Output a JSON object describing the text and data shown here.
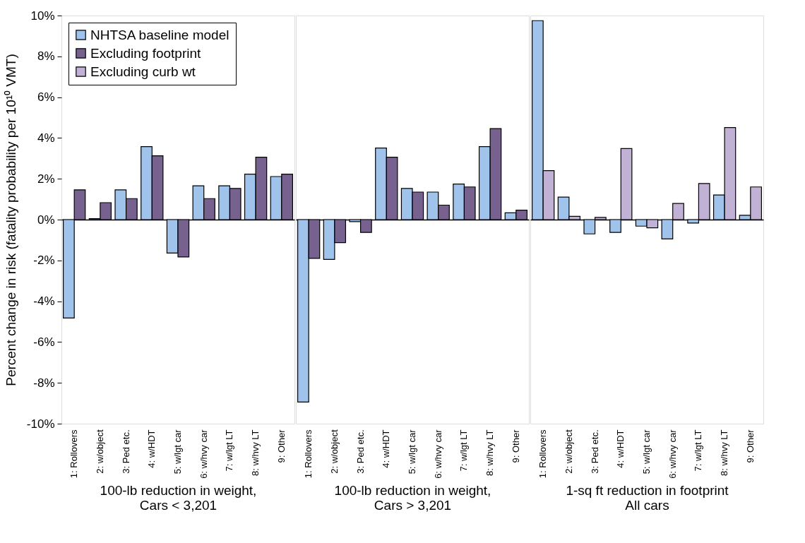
{
  "chart_data": [
    {
      "type": "bar",
      "xlabel": "100-lb reduction in weight,\nCars < 3,201",
      "ylabel": "Percent change in risk (fatality probability per 10¹⁰ VMT)",
      "categories": [
        "1: Rollovers",
        "2: w/object",
        "3: Ped etc.",
        "4: w/HDT",
        "5: w/lgt car",
        "6: w/hvy car",
        "7: w/lgt LT",
        "8: w/hvy LT",
        "9: Other"
      ],
      "series": [
        {
          "name": "NHTSA baseline model",
          "color": "#9fc3ea",
          "values": [
            -4.82,
            0.05,
            1.46,
            3.58,
            -1.64,
            1.66,
            1.66,
            2.23,
            2.11
          ]
        },
        {
          "name": "Excluding footprint",
          "color": "#77618e",
          "values": [
            1.46,
            0.83,
            1.03,
            3.13,
            -1.83,
            1.03,
            1.53,
            3.06,
            2.23
          ]
        }
      ],
      "ylim": [
        -10,
        10
      ],
      "yticks": [
        {
          "value": -10,
          "label": "-10%"
        },
        {
          "value": -8,
          "label": "-8%"
        },
        {
          "value": -6,
          "label": "-6%"
        },
        {
          "value": -4,
          "label": "-4%"
        },
        {
          "value": -2,
          "label": "-2%"
        },
        {
          "value": 0,
          "label": "0%"
        },
        {
          "value": 2,
          "label": "2%"
        },
        {
          "value": 4,
          "label": "4%"
        },
        {
          "value": 6,
          "label": "6%"
        },
        {
          "value": 8,
          "label": "8%"
        },
        {
          "value": 10,
          "label": "10%"
        }
      ],
      "legend": "top left"
    },
    {
      "type": "bar",
      "xlabel": "100-lb reduction in weight,\nCars > 3,201",
      "categories": [
        "1: Rollovers",
        "2: w/object",
        "3: Ped etc.",
        "4: w/HDT",
        "5: w/lgt car",
        "6: w/hvy car",
        "7: w/lgt LT",
        "8: w/hvy LT",
        "9: Other"
      ],
      "series": [
        {
          "name": "NHTSA baseline model",
          "color": "#9fc3ea",
          "values": [
            -8.94,
            -1.95,
            -0.1,
            3.51,
            1.53,
            1.35,
            1.74,
            3.58,
            0.33
          ]
        },
        {
          "name": "Excluding footprint",
          "color": "#77618e",
          "values": [
            -1.9,
            -1.13,
            -0.63,
            3.06,
            1.35,
            0.71,
            1.6,
            4.46,
            0.46
          ]
        }
      ],
      "ylim": [
        -10,
        10
      ],
      "tick_labels": "x",
      "legend": false
    },
    {
      "type": "bar",
      "xlabel": "1-sq ft reduction in footprint\nAll cars",
      "categories": [
        "1: Rollovers",
        "2: w/object",
        "3: Ped etc.",
        "4: w/HDT",
        "5: w/lgt car",
        "6: w/hvy car",
        "7: w/lgt LT",
        "8: w/hvy LT",
        "9: Other"
      ],
      "series": [
        {
          "name": "NHTSA baseline model",
          "color": "#9fc3ea",
          "values": [
            9.75,
            1.1,
            -0.7,
            -0.63,
            -0.32,
            -0.95,
            -0.17,
            1.21,
            0.21
          ]
        },
        {
          "name": "Excluding curb wt",
          "color": "#c0b1d5",
          "values": [
            2.4,
            0.16,
            0.11,
            3.48,
            -0.4,
            0.79,
            1.77,
            4.51,
            1.6
          ]
        }
      ],
      "ylim": [
        -10,
        10
      ],
      "tick_labels": "x",
      "legend": "top left"
    }
  ]
}
